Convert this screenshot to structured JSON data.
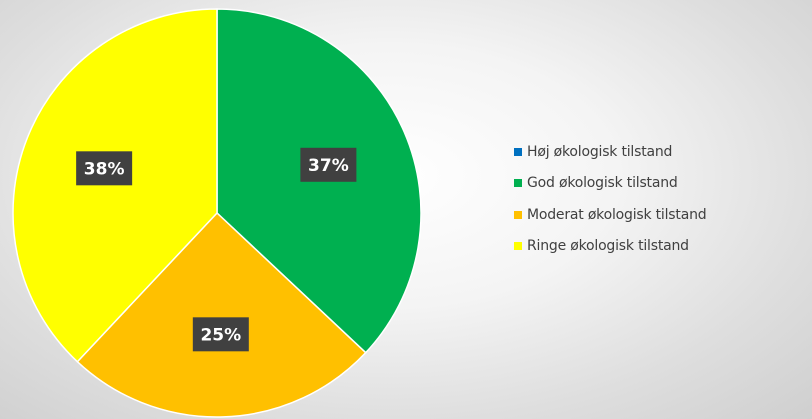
{
  "chart_data": {
    "type": "pie",
    "title": "",
    "slices": [
      {
        "label": "Høj økologisk tilstand",
        "value": 0,
        "display": "",
        "color": "#0070c0"
      },
      {
        "label": "God økologisk tilstand",
        "value": 37,
        "display": "37%",
        "color": "#00b050"
      },
      {
        "label": "Moderat økologisk tilstand",
        "value": 25,
        "display": "25%",
        "color": "#ffc000"
      },
      {
        "label": "Ringe økologisk tilstand",
        "value": 38,
        "display": "38%",
        "color": "#ffff00"
      }
    ],
    "start_angle_deg": 0,
    "direction": "clockwise",
    "data_labels": {
      "background": "#404040",
      "color": "#ffffff"
    },
    "legend": {
      "position": "right"
    }
  }
}
